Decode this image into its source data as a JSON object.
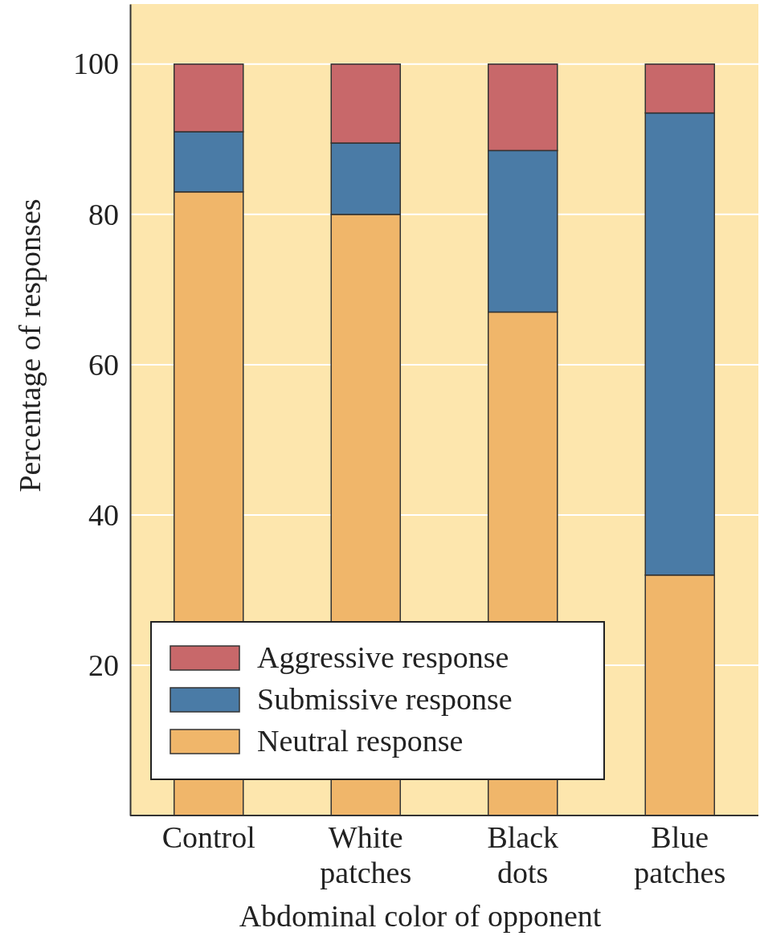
{
  "chart_data": {
    "type": "bar",
    "stacked": true,
    "xlabel": "Abdominal color of opponent",
    "ylabel": "Percentage of responses",
    "categories": [
      "Control",
      "White patches",
      "Black dots",
      "Blue patches"
    ],
    "series": [
      {
        "name": "Neutral response",
        "color": "#f0b66a",
        "values": [
          83,
          80,
          67,
          32
        ]
      },
      {
        "name": "Submissive response",
        "color": "#4a7ba6",
        "values": [
          8,
          9.5,
          21.5,
          61.5
        ]
      },
      {
        "name": "Aggressive response",
        "color": "#c8686a",
        "values": [
          9,
          10.5,
          11.5,
          6.5
        ]
      }
    ],
    "ylim": [
      0,
      108
    ],
    "yticks": [
      {
        "value": 0,
        "label": null
      },
      20,
      40,
      60,
      80,
      100
    ],
    "grid": "y",
    "legend": "bottom left"
  }
}
